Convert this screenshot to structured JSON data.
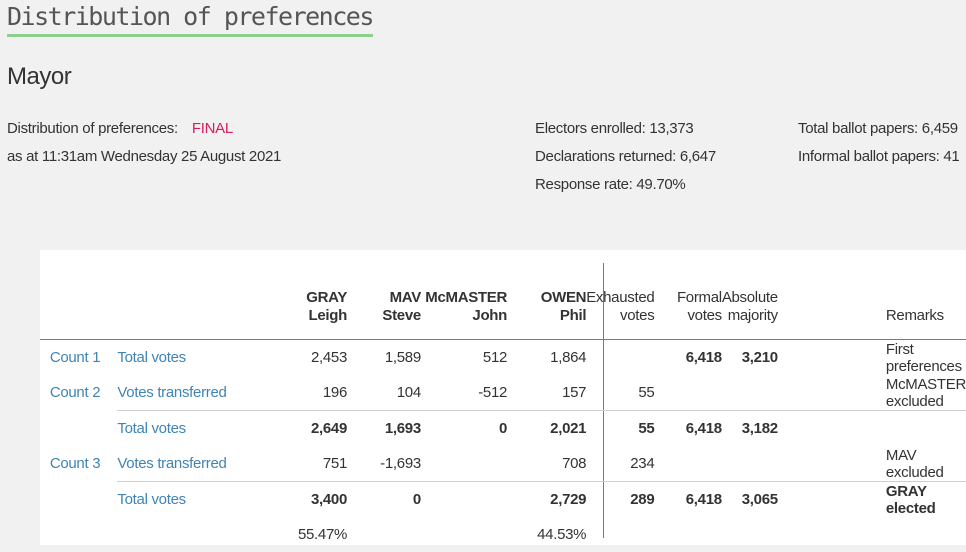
{
  "page": {
    "heading": "Distribution of preferences",
    "subheading": "Mayor"
  },
  "info": {
    "dop_label": "Distribution of preferences:",
    "dop_status": "FINAL",
    "as_at": "as at 11:31am Wednesday 25 August 2021",
    "electors_enrolled": "Electors enrolled: 13,373",
    "declarations_returned": "Declarations returned: 6,647",
    "response_rate": "Response rate: 49.70%",
    "total_ballot_papers": "Total ballot papers: 6,459",
    "informal_ballot_papers": "Informal ballot papers: 41"
  },
  "table": {
    "candidates": [
      {
        "surname": "GRAY",
        "given": "Leigh"
      },
      {
        "surname": "MAV",
        "given": "Steve"
      },
      {
        "surname": "McMASTER",
        "given": "John"
      },
      {
        "surname": "OWEN",
        "given": "Phil"
      }
    ],
    "headers": {
      "exhausted_1": "Exhausted",
      "exhausted_2": "votes",
      "formal_1": "Formal",
      "formal_2": "votes",
      "majority_1": "Absolute",
      "majority_2": "majority",
      "remarks": "Remarks"
    },
    "rows": [
      {
        "count": "Count 1",
        "type": "Total votes",
        "gray": "2,453",
        "mav": "1,589",
        "mcmaster": "512",
        "owen": "1,864",
        "exhausted": "",
        "formal": "6,418",
        "majority": "3,210",
        "remarks": "First preferences"
      },
      {
        "count": "Count 2",
        "type": "Votes transferred",
        "gray": "196",
        "mav": "104",
        "mcmaster": "-512",
        "owen": "157",
        "exhausted": "55",
        "formal": "",
        "majority": "",
        "remarks": "McMASTER excluded"
      },
      {
        "count": "",
        "type": "Total votes",
        "gray": "2,649",
        "mav": "1,693",
        "mcmaster": "0",
        "owen": "2,021",
        "exhausted": "55",
        "formal": "6,418",
        "majority": "3,182",
        "remarks": ""
      },
      {
        "count": "Count 3",
        "type": "Votes transferred",
        "gray": "751",
        "mav": "-1,693",
        "mcmaster": "",
        "owen": "708",
        "exhausted": "234",
        "formal": "",
        "majority": "",
        "remarks": "MAV excluded"
      },
      {
        "count": "",
        "type": "Total votes",
        "gray": "3,400",
        "mav": "0",
        "mcmaster": "",
        "owen": "2,729",
        "exhausted": "289",
        "formal": "6,418",
        "majority": "3,065",
        "remarks": "GRAY elected"
      }
    ],
    "percentages": {
      "gray": "55.47%",
      "owen": "44.53%"
    }
  }
}
